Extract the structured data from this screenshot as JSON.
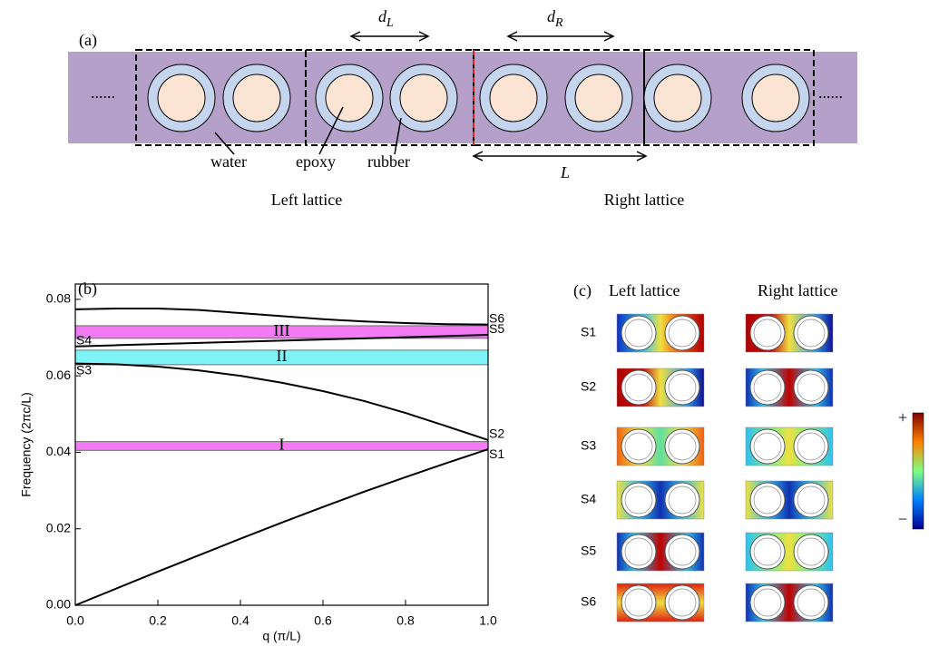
{
  "panel_a": {
    "label": "(a)",
    "dots": "......",
    "dL": {
      "base": "d",
      "sub": "L"
    },
    "dR": {
      "base": "d",
      "sub": "R"
    },
    "L": "L",
    "water": "water",
    "epoxy": "epoxy",
    "rubber": "rubber",
    "left_lattice": "Left lattice",
    "right_lattice": "Right lattice"
  },
  "chart_data": {
    "type": "line",
    "panel_label": "(b)",
    "x_label": "q (π/L)",
    "y_label": "Frequency (2πc/L)",
    "x": [
      0,
      0.1,
      0.2,
      0.3,
      0.4,
      0.5,
      0.6,
      0.7,
      0.8,
      0.9,
      1
    ],
    "series": [
      {
        "color": "#000000",
        "end_label": "S1",
        "values": [
          0,
          0.0044,
          0.0088,
          0.0131,
          0.0174,
          0.0216,
          0.0257,
          0.0297,
          0.0335,
          0.0372,
          0.0408
        ]
      },
      {
        "color": "#000000",
        "start_label": "S3",
        "end_label": "S2",
        "values": [
          0.0632,
          0.063,
          0.0624,
          0.0614,
          0.06,
          0.0582,
          0.056,
          0.0534,
          0.0503,
          0.0468,
          0.0432
        ]
      },
      {
        "color": "#000000",
        "start_label": "S4",
        "end_label": "S5",
        "values": [
          0.0677,
          0.068,
          0.0683,
          0.0686,
          0.0689,
          0.0692,
          0.0695,
          0.0698,
          0.0701,
          0.0704,
          0.0707
        ]
      },
      {
        "color": "#000000",
        "end_label": "S6",
        "values": [
          0.0774,
          0.0776,
          0.0776,
          0.0772,
          0.0764,
          0.0756,
          0.0748,
          0.0742,
          0.0738,
          0.0735,
          0.0734
        ]
      }
    ],
    "bands": [
      {
        "label": "I",
        "range": [
          0.0405,
          0.0428
        ],
        "color": "#f27af2"
      },
      {
        "label": "II",
        "range": [
          0.0629,
          0.0667
        ],
        "color": "#7ff4f8"
      },
      {
        "label": "III",
        "range": [
          0.0698,
          0.0731
        ],
        "color": "#f27af2"
      }
    ],
    "xlim": [
      0,
      1
    ],
    "ylim": [
      0,
      0.084
    ],
    "xticks": [
      {
        "value": 0,
        "label": "0.0"
      },
      {
        "value": 0.2,
        "label": "0.2"
      },
      {
        "value": 0.4,
        "label": "0.4"
      },
      {
        "value": 0.6,
        "label": "0.6"
      },
      {
        "value": 0.8,
        "label": "0.8"
      },
      {
        "value": 1,
        "label": "1.0"
      }
    ],
    "yticks": [
      {
        "value": 0,
        "label": "0.00"
      },
      {
        "value": 0.02,
        "label": "0.02"
      },
      {
        "value": 0.04,
        "label": "0.04"
      },
      {
        "value": 0.06,
        "label": "0.06"
      },
      {
        "value": 0.08,
        "label": "0.08"
      }
    ]
  },
  "panel_c": {
    "label": "(c)",
    "left_title": "Left lattice",
    "right_title": "Right lattice",
    "rows": [
      "S1",
      "S2",
      "S3",
      "S4",
      "S5",
      "S6"
    ],
    "colorbar_max": "+",
    "colorbar_min": "−"
  }
}
